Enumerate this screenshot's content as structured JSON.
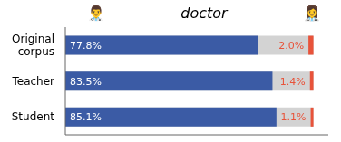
{
  "chart_data": {
    "type": "bar",
    "orientation": "horizontal",
    "title": "doctor",
    "annotations": [
      "👨‍⚕️",
      "👩‍⚕️"
    ],
    "categories": [
      "Original\ncorpus",
      "Teacher",
      "Student"
    ],
    "series": [
      {
        "color": "#D3D3D3",
        "values": [
          100,
          100,
          100
        ]
      },
      {
        "color": "#3B5BA5",
        "values": [
          77.8,
          83.5,
          85.1
        ],
        "value_labels": [
          "77.8%",
          "83.5%",
          "85.1%"
        ]
      },
      {
        "color": "#E8533A",
        "values": [
          2.0,
          1.4,
          1.1
        ],
        "value_labels": [
          "2.0%",
          "1.4%",
          "1.1%"
        ]
      }
    ],
    "xlim": [
      0,
      106
    ],
    "data_labels": true,
    "tick_labels": "y",
    "grid": false
  }
}
